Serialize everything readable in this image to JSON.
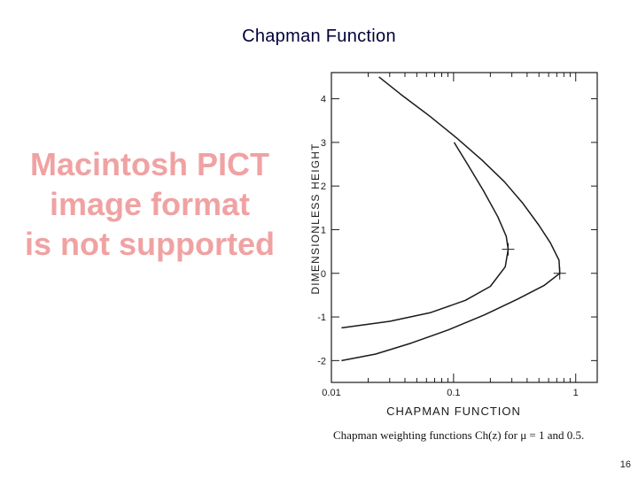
{
  "slide": {
    "title": "Chapman Function",
    "placeholder_lines": [
      "Macintosh PICT",
      "image format",
      "is not supported"
    ],
    "caption": "Chapman weighting functions Ch(z) for μ = 1 and 0.5.",
    "page_number": "16"
  },
  "chart_data": {
    "type": "line",
    "title": "",
    "xlabel": "CHAPMAN FUNCTION",
    "ylabel": "DIMENSIONLESS HEIGHT",
    "x_scale": "log",
    "xlim": [
      0.01,
      1.5
    ],
    "ylim": [
      -2.5,
      4.6
    ],
    "x_tick_labels": [
      "0.01",
      "0.1",
      "1"
    ],
    "y_ticks": [
      -2,
      -1,
      0,
      1,
      2,
      3,
      4
    ],
    "y_tick_labels": [
      "-2",
      "-1",
      "0",
      "1",
      "2",
      "3",
      "4"
    ],
    "grid": false,
    "series": [
      {
        "name": "μ = 1",
        "points": [
          [
            0.0121,
            -2.0
          ],
          [
            0.023,
            -1.85
          ],
          [
            0.045,
            -1.6
          ],
          [
            0.09,
            -1.3
          ],
          [
            0.18,
            -0.95
          ],
          [
            0.33,
            -0.6
          ],
          [
            0.55,
            -0.28
          ],
          [
            0.74,
            0.0
          ],
          [
            0.73,
            0.3
          ],
          [
            0.62,
            0.7
          ],
          [
            0.5,
            1.1
          ],
          [
            0.37,
            1.6
          ],
          [
            0.26,
            2.1
          ],
          [
            0.17,
            2.6
          ],
          [
            0.106,
            3.1
          ],
          [
            0.064,
            3.6
          ],
          [
            0.037,
            4.1
          ],
          [
            0.0245,
            4.5
          ]
        ]
      },
      {
        "name": "μ = 0.5",
        "points": [
          [
            0.0121,
            -1.25
          ],
          [
            0.03,
            -1.1
          ],
          [
            0.065,
            -0.9
          ],
          [
            0.125,
            -0.62
          ],
          [
            0.2,
            -0.3
          ],
          [
            0.265,
            0.15
          ],
          [
            0.28,
            0.55
          ],
          [
            0.27,
            0.85
          ],
          [
            0.23,
            1.3
          ],
          [
            0.175,
            1.9
          ],
          [
            0.13,
            2.5
          ],
          [
            0.101,
            3.0
          ]
        ]
      }
    ]
  }
}
